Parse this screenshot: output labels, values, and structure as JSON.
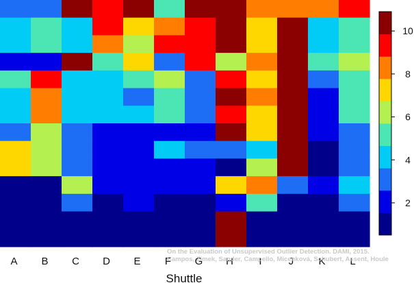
{
  "chart_data": {
    "type": "heatmap",
    "xlabel": "Shuttle",
    "categories": [
      "A",
      "B",
      "C",
      "D",
      "E",
      "F",
      "G",
      "H",
      "I",
      "J",
      "K",
      "L"
    ],
    "rows_top_to_bottom": 14,
    "values": [
      [
        2.9,
        2.9,
        10.4,
        9.2,
        10.4,
        5.6,
        10.4,
        10.4,
        8.2,
        8.2,
        8.2,
        9.2
      ],
      [
        4.3,
        5.3,
        4.3,
        9.2,
        7.3,
        8.2,
        9.2,
        10.4,
        7.3,
        10.4,
        4.3,
        5.3
      ],
      [
        4.3,
        5.3,
        4.3,
        8.2,
        6.3,
        9.2,
        9.2,
        10.4,
        7.3,
        10.4,
        4.3,
        5.3
      ],
      [
        1.9,
        1.9,
        10.4,
        5.3,
        7.3,
        2.9,
        9.2,
        6.3,
        8.2,
        10.4,
        5.3,
        6.3
      ],
      [
        5.3,
        9.2,
        4.3,
        4.3,
        5.3,
        6.3,
        2.9,
        9.2,
        7.3,
        10.4,
        2.9,
        5.3
      ],
      [
        4.3,
        8.2,
        4.3,
        4.3,
        2.9,
        5.3,
        2.9,
        10.4,
        8.2,
        10.4,
        1.9,
        5.3
      ],
      [
        4.3,
        8.2,
        4.3,
        4.3,
        4.3,
        5.3,
        2.9,
        9.2,
        7.3,
        10.4,
        1.9,
        5.3
      ],
      [
        2.9,
        6.3,
        2.9,
        1.9,
        1.9,
        1.9,
        1.9,
        10.4,
        7.3,
        10.4,
        1.9,
        2.9
      ],
      [
        7.3,
        6.3,
        2.9,
        1.9,
        1.9,
        4.3,
        2.9,
        2.9,
        4.3,
        10.4,
        1.0,
        2.9
      ],
      [
        7.3,
        6.3,
        2.9,
        1.9,
        1.9,
        1.9,
        1.9,
        1.0,
        6.3,
        10.4,
        1.0,
        2.9
      ],
      [
        1.0,
        1.0,
        6.3,
        1.9,
        1.9,
        1.9,
        1.9,
        7.3,
        8.2,
        2.9,
        1.9,
        4.3
      ],
      [
        1.0,
        1.0,
        2.9,
        1.0,
        1.9,
        1.0,
        1.0,
        1.9,
        5.3,
        1.0,
        1.0,
        2.9
      ],
      [
        1.0,
        1.0,
        1.0,
        1.0,
        1.0,
        1.0,
        1.0,
        10.4,
        1.0,
        1.0,
        1.0,
        1.0
      ],
      [
        1.0,
        1.0,
        1.0,
        1.0,
        1.0,
        1.0,
        1.0,
        10.4,
        1.0,
        1.0,
        1.0,
        1.0
      ]
    ],
    "colorbar": {
      "range": [
        0.5,
        10.9
      ],
      "ticks": [
        2,
        4,
        6,
        8,
        10
      ],
      "tick_labels": [
        "2",
        "4",
        "6",
        "8",
        "10"
      ],
      "colors": [
        "#00008b",
        "#0000e6",
        "#1e6ef5",
        "#00ccf5",
        "#4ce6b4",
        "#b4f050",
        "#ffd700",
        "#ff7d00",
        "#ff0000",
        "#8b0000"
      ]
    },
    "grid": false
  },
  "watermark": {
    "line1": "On the Evaluation of Unsupervised Outlier Detection. DAMI, 2015.",
    "line2": "Campos, Zimek, Sander, Campello, Micenková, Schubert, Assent, Houle"
  }
}
